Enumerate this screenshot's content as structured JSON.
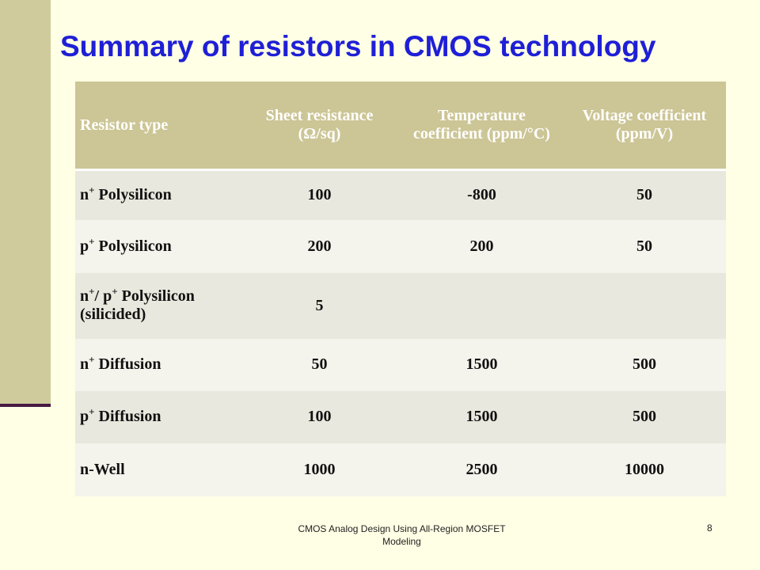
{
  "slide": {
    "title": "Summary of resistors in CMOS technology",
    "footer": "CMOS Analog Design Using All-Region MOSFET Modeling",
    "page_number": "8"
  },
  "table": {
    "headers": [
      "Resistor type",
      "Sheet resistance (Ω/sq)",
      "Temperature coefficient (ppm/°C)",
      "Voltage coefficient (ppm/V)"
    ],
    "rows": [
      {
        "prefix": "n",
        "sup": "+",
        "rest": " Polysilicon",
        "sheet": "100",
        "temp": "-800",
        "volt": "50"
      },
      {
        "prefix": "p",
        "sup": "+",
        "rest": " Polysilicon",
        "sheet": "200",
        "temp": "200",
        "volt": "50"
      },
      {
        "prefix": "n",
        "sup": "+",
        "rest": "/ p",
        "sup2": "+",
        "rest2": " Polysilicon (silicided)",
        "sheet": "5",
        "temp": "",
        "volt": ""
      },
      {
        "prefix": "n",
        "sup": "+",
        "rest": " Diffusion",
        "sheet": "50",
        "temp": "1500",
        "volt": "500"
      },
      {
        "prefix": "p",
        "sup": "+",
        "rest": " Diffusion",
        "sheet": "100",
        "temp": "1500",
        "volt": "500"
      },
      {
        "prefix": "n-Well",
        "sup": "",
        "rest": "",
        "sheet": "1000",
        "temp": "2500",
        "volt": "10000"
      }
    ]
  },
  "colors": {
    "title": "#1F1FD6",
    "header_bg": "#CCC595",
    "row_odd": "#E9E8DE",
    "row_even": "#F4F3EC",
    "background": "#FFFFE5",
    "side_bar": "#CFCB9C",
    "side_line": "#4A1942"
  }
}
